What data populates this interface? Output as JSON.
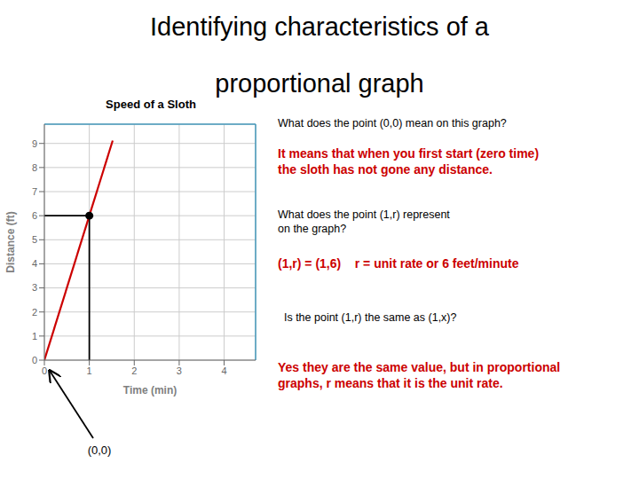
{
  "chart_data": {
    "type": "line",
    "title": "Speed of a Sloth",
    "subtitle": "Identifying characteristics of a\nproportional graph",
    "x_label": "Time (min)",
    "y_label": "Distance (ft)",
    "xlim": [
      0,
      4.7
    ],
    "ylim": [
      0,
      9.8
    ],
    "xticks": [
      0,
      1,
      2,
      3,
      4
    ],
    "yticks": [
      0,
      1,
      2,
      3,
      4,
      5,
      6,
      7,
      8,
      9
    ],
    "grid": true,
    "series": [
      {
        "type": "line",
        "color": "#cc0000",
        "x": [
          0,
          1.52
        ],
        "values": [
          0,
          9.12
        ]
      },
      {
        "type": "scatter",
        "color": "#000000",
        "x": [
          1
        ],
        "values": [
          6
        ]
      }
    ],
    "annotations": [
      {
        "text": "(0,0)",
        "color": "#000000"
      },
      {
        "text": "What does the point (0,0) mean on this graph?",
        "color": "#000000"
      },
      {
        "text": "It means that when you first start (zero time)\nthe sloth has not gone any distance.",
        "color": "#cc0000"
      },
      {
        "text": "What does the point (1,r) represent\non the graph?",
        "color": "#000000"
      },
      {
        "text": "(1,r) = (1,6)    r = unit rate or 6 feet/minute",
        "color": "#cc0000"
      },
      {
        "text": "  Is the point (1,r) the same as (1,x)?",
        "color": "#000000"
      },
      {
        "text": "Yes they are the same value, but in proportional\ngraphs, r means that it is the unit rate.",
        "color": "#cc0000"
      }
    ]
  }
}
